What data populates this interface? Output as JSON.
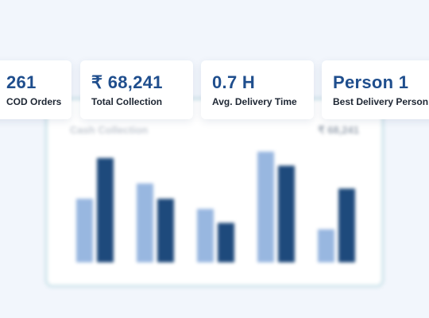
{
  "kpis": [
    {
      "value": "261",
      "label": "COD Orders"
    },
    {
      "value": "₹ 68,241",
      "label": "Total Collection"
    },
    {
      "value": "0.7 H",
      "label": "Avg. Delivery Time"
    },
    {
      "value": "Person 1",
      "label": "Best Delivery Person"
    }
  ],
  "chart_data": {
    "type": "bar",
    "title": "Cash Collection",
    "total": "₹ 68,241",
    "categories": [
      "",
      "",
      "",
      "",
      ""
    ],
    "series": [
      {
        "values": [
          50,
          62,
          42,
          87,
          26
        ]
      },
      {
        "values": [
          82,
          50,
          31,
          76,
          58
        ]
      }
    ],
    "ylim": [
      0,
      100
    ],
    "grid": false,
    "colors": [
      "#98b7e0",
      "#1e4a7c"
    ]
  }
}
